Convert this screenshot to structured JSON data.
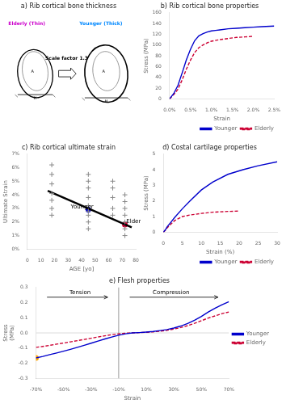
{
  "chart_data": [
    {
      "type": "schematic",
      "title": "a) Rib cortical bone thickness",
      "xlim": [
        0,
        10
      ],
      "ylim": [
        0,
        10
      ],
      "tick_labels": false,
      "grid": false,
      "annotations": [
        {
          "text": "Elderly (Thin)",
          "x": 0.5,
          "y": 9.0,
          "color": "#CC00CC"
        },
        {
          "text": "A",
          "x": 2.3,
          "y": 5.3,
          "align": "center"
        },
        {
          "text": "H",
          "x": 2.5,
          "y": 3.2,
          "align": "center"
        },
        {
          "text": "Younger (Thick)",
          "x": 5.8,
          "y": 9.0,
          "color": "#0088FF"
        },
        {
          "text": "A",
          "x": 7.6,
          "y": 5.3,
          "align": "center"
        },
        {
          "text": "H",
          "x": 7.8,
          "y": 2.9,
          "align": "center"
        },
        {
          "text": "Scale factor 1.3",
          "x": 4.85,
          "y": 6.3,
          "align": "center"
        }
      ]
    },
    {
      "type": "line",
      "title": "b) Rib cortical bone properties",
      "xlabel": "Strain",
      "ylabel": "Stress (MPa)",
      "xlim": [
        0,
        0.025
      ],
      "ylim": [
        0,
        160
      ],
      "xticks": [
        {
          "value": 0,
          "label": "0.0%"
        },
        {
          "value": 0.005,
          "label": "0.5%"
        },
        {
          "value": 0.01,
          "label": "1.0%"
        },
        {
          "value": 0.015,
          "label": "1.5%"
        },
        {
          "value": 0.02,
          "label": "2.0%"
        },
        {
          "value": 0.025,
          "label": "2.5%"
        }
      ],
      "yticks": [
        0,
        20,
        40,
        60,
        80,
        100,
        120,
        140,
        160
      ],
      "grid": false,
      "legend": "lower right",
      "series": [
        {
          "name": "Younger",
          "color": "#0000CC",
          "line_style": "solid",
          "x": [
            0.0,
            0.001,
            0.002,
            0.003,
            0.004,
            0.005,
            0.006,
            0.007,
            0.008,
            0.009,
            0.01,
            0.011,
            0.012,
            0.014,
            0.016,
            0.018,
            0.02,
            0.022,
            0.025
          ],
          "values": [
            0,
            10,
            25,
            48,
            72,
            92,
            108,
            117,
            121,
            124,
            126,
            127,
            128,
            130,
            131,
            132,
            133,
            134,
            135
          ]
        },
        {
          "name": "Elderly",
          "color": "#CC0033",
          "line_style": "dashed",
          "x": [
            0.0,
            0.001,
            0.002,
            0.003,
            0.004,
            0.005,
            0.006,
            0.007,
            0.008,
            0.009,
            0.01,
            0.012,
            0.014,
            0.016,
            0.018,
            0.02
          ],
          "values": [
            0,
            8,
            18,
            35,
            55,
            72,
            86,
            95,
            100,
            104,
            107,
            110,
            112,
            114,
            115,
            116
          ]
        }
      ]
    },
    {
      "type": "scatter",
      "title": "c) Rib cortical ultimate strain",
      "xlabel": "AGE [yo]",
      "ylabel": "Ultimate Strain",
      "xlim": [
        0,
        80
      ],
      "ylim": [
        0,
        0.07
      ],
      "xticks": [
        0,
        10,
        20,
        30,
        40,
        50,
        60,
        70,
        80
      ],
      "yticks": [
        {
          "value": 0,
          "label": "0%"
        },
        {
          "value": 0.01,
          "label": "1%"
        },
        {
          "value": 0.02,
          "label": "2%"
        },
        {
          "value": 0.03,
          "label": "3%"
        },
        {
          "value": 0.04,
          "label": "4%"
        },
        {
          "value": 0.05,
          "label": "5%"
        },
        {
          "value": 0.06,
          "label": "6%"
        },
        {
          "value": 0.07,
          "label": "7%"
        }
      ],
      "grid": false,
      "series": [
        {
          "type": "scatter",
          "marker": "plus",
          "color": "#888888",
          "x": [
            18,
            18,
            18,
            18,
            18,
            18,
            18
          ],
          "values": [
            0.025,
            0.03,
            0.036,
            0.041,
            0.048,
            0.055,
            0.062
          ]
        },
        {
          "type": "scatter",
          "marker": "plus",
          "color": "#888888",
          "x": [
            45,
            45,
            45,
            45,
            45,
            45,
            45,
            45,
            45
          ],
          "values": [
            0.015,
            0.02,
            0.025,
            0.028,
            0.032,
            0.038,
            0.045,
            0.05,
            0.055
          ]
        },
        {
          "type": "scatter",
          "marker": "plus",
          "color": "#888888",
          "x": [
            63,
            63,
            63,
            63,
            63
          ],
          "values": [
            0.025,
            0.03,
            0.038,
            0.045,
            0.05
          ]
        },
        {
          "type": "scatter",
          "marker": "plus",
          "color": "#888888",
          "x": [
            72,
            72,
            72,
            72,
            72,
            72,
            72
          ],
          "values": [
            0.01,
            0.015,
            0.02,
            0.025,
            0.03,
            0.035,
            0.04
          ]
        },
        {
          "type": "line",
          "line_style": "solid",
          "color": "#000000",
          "x": [
            15,
            77
          ],
          "values": [
            0.043,
            0.016
          ]
        },
        {
          "type": "scatter",
          "marker": "circle",
          "color": "#0000CC",
          "x": [
            45
          ],
          "values": [
            0.029
          ]
        },
        {
          "type": "scatter",
          "marker": "circle",
          "color": "#CC0033",
          "x": [
            72
          ],
          "values": [
            0.018
          ]
        }
      ],
      "annotations": [
        {
          "text": "Younger",
          "x": 32,
          "y": 0.03
        },
        {
          "text": "Elderly",
          "x": 73,
          "y": 0.019
        }
      ]
    },
    {
      "type": "line",
      "title": "d) Costal cartilage properties",
      "xlabel": "Strain (%)",
      "ylabel": "Stress (MPa)",
      "xlim": [
        0,
        30
      ],
      "ylim": [
        0,
        5
      ],
      "xticks": [
        0,
        5,
        10,
        15,
        20,
        25,
        30
      ],
      "yticks": [
        0,
        1,
        2,
        3,
        4,
        5
      ],
      "grid": false,
      "legend": "lower right",
      "series": [
        {
          "name": "Younger",
          "color": "#0000CC",
          "line_style": "solid",
          "x": [
            0,
            0.5,
            1,
            2,
            3,
            5,
            7,
            10,
            13,
            17,
            21,
            25,
            30
          ],
          "values": [
            0,
            0.15,
            0.35,
            0.65,
            0.95,
            1.5,
            2.0,
            2.7,
            3.2,
            3.7,
            4.0,
            4.25,
            4.5
          ]
        },
        {
          "name": "Elderly",
          "color": "#CC0033",
          "line_style": "dashed",
          "x": [
            0,
            0.5,
            1,
            2,
            3,
            5,
            7,
            10,
            13,
            17,
            20
          ],
          "values": [
            0,
            0.12,
            0.28,
            0.52,
            0.75,
            1.0,
            1.1,
            1.2,
            1.28,
            1.33,
            1.35
          ]
        }
      ]
    },
    {
      "type": "line",
      "title": "e) Flesh properties",
      "xlabel": "Strain",
      "ylabel": "Stress\n(MPa)",
      "xlim": [
        -0.7,
        0.7
      ],
      "ylim": [
        -0.3,
        0.3
      ],
      "xticks": [
        {
          "value": -0.7,
          "label": "-70%"
        },
        {
          "value": -0.5,
          "label": "-50%"
        },
        {
          "value": -0.3,
          "label": "-30%"
        },
        {
          "value": -0.1,
          "label": "-10%"
        },
        {
          "value": 0.1,
          "label": "10%"
        },
        {
          "value": 0.3,
          "label": "30%"
        },
        {
          "value": 0.5,
          "label": "50%"
        },
        {
          "value": 0.7,
          "label": "70%"
        }
      ],
      "yticks": [
        -0.3,
        -0.2,
        -0.1,
        {
          "value": 0,
          "label": "0.0"
        },
        0.1,
        0.2,
        0.3
      ],
      "grid": false,
      "legend": "center right",
      "series": [
        {
          "name": "Younger",
          "color": "#0000CC",
          "line_style": "solid",
          "x": [
            -0.7,
            -0.65,
            -0.6,
            -0.55,
            -0.5,
            -0.45,
            -0.4,
            -0.35,
            -0.3,
            -0.25,
            -0.2,
            -0.15,
            -0.1,
            -0.05,
            0.0,
            0.05,
            0.1,
            0.15,
            0.2,
            0.25,
            0.3,
            0.35,
            0.4,
            0.45,
            0.5,
            0.55,
            0.6,
            0.65,
            0.7
          ],
          "values": [
            -0.165,
            -0.155,
            -0.143,
            -0.132,
            -0.12,
            -0.108,
            -0.095,
            -0.082,
            -0.068,
            -0.054,
            -0.04,
            -0.027,
            -0.015,
            -0.006,
            0.0,
            0.002,
            0.005,
            0.009,
            0.015,
            0.022,
            0.032,
            0.045,
            0.062,
            0.083,
            0.108,
            0.138,
            0.163,
            0.185,
            0.205
          ]
        },
        {
          "name": "Elderly",
          "color": "#CC0033",
          "line_style": "dashed",
          "x": [
            -0.7,
            -0.65,
            -0.6,
            -0.55,
            -0.5,
            -0.45,
            -0.4,
            -0.35,
            -0.3,
            -0.25,
            -0.2,
            -0.15,
            -0.1,
            -0.05,
            0.0,
            0.05,
            0.1,
            0.15,
            0.2,
            0.25,
            0.3,
            0.35,
            0.4,
            0.45,
            0.5,
            0.55,
            0.6,
            0.65,
            0.7
          ],
          "values": [
            -0.095,
            -0.089,
            -0.082,
            -0.074,
            -0.067,
            -0.059,
            -0.051,
            -0.043,
            -0.035,
            -0.027,
            -0.019,
            -0.012,
            -0.006,
            -0.002,
            0.0,
            0.002,
            0.004,
            0.007,
            0.011,
            0.017,
            0.025,
            0.035,
            0.048,
            0.063,
            0.08,
            0.098,
            0.112,
            0.127,
            0.138
          ]
        },
        {
          "type": "line",
          "line_style": "solid",
          "color": "gray",
          "x": [
            -0.1,
            -0.1
          ],
          "values": [
            -0.3,
            0.3
          ]
        },
        {
          "type": "line",
          "line_style": "solid",
          "color": "lightgray",
          "x": [
            -0.7,
            0.7
          ],
          "values": [
            0,
            0
          ]
        },
        {
          "type": "scatter",
          "marker": "circle",
          "color": "orange",
          "x": [
            -0.7
          ],
          "values": [
            -0.165
          ]
        }
      ],
      "annotations": [
        {
          "text": "Tension",
          "x": -0.38,
          "y": 0.248,
          "align": "center",
          "arrow": {
            "from": [
              -0.62,
              0.235
            ],
            "to": [
              -0.18,
              0.235
            ]
          }
        },
        {
          "text": "Compression",
          "x": 0.28,
          "y": 0.248,
          "align": "center",
          "arrow": {
            "from": [
              -0.02,
              0.235
            ],
            "to": [
              0.62,
              0.235
            ]
          }
        }
      ]
    }
  ]
}
